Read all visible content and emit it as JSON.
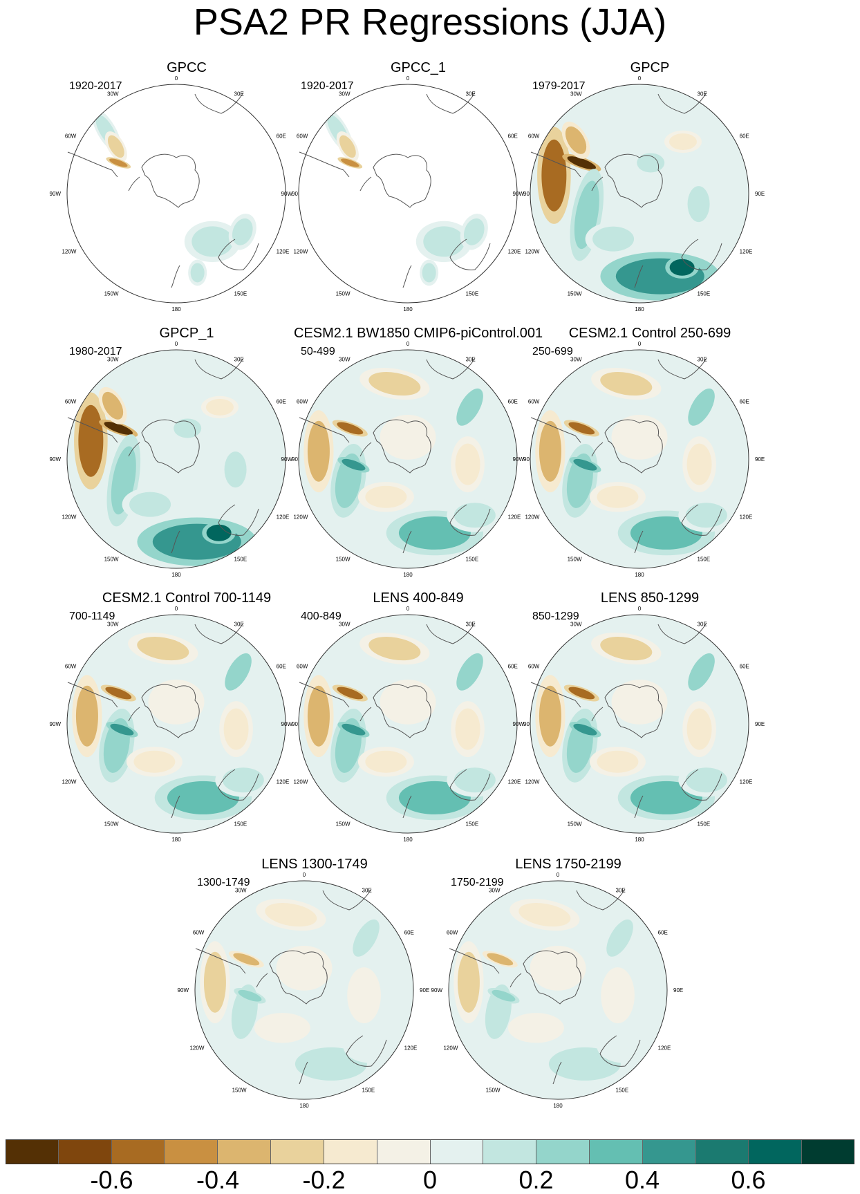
{
  "chart_data": {
    "type": "heatmap",
    "projection": "south-polar stereographic",
    "title": "PSA2 PR Regressions (JJA)",
    "longitude_labels": [
      "0",
      "30E",
      "60E",
      "90E",
      "120E",
      "150E",
      "180",
      "150W",
      "120W",
      "90W",
      "60W",
      "30W"
    ],
    "panels": [
      {
        "title": "GPCC",
        "range": "1920-2017",
        "coverage": "land"
      },
      {
        "title": "GPCC_1",
        "range": "1920-2017",
        "coverage": "land"
      },
      {
        "title": "GPCP",
        "range": "1979-2017",
        "coverage": "global"
      },
      {
        "title": "GPCP_1",
        "range": "1980-2017",
        "coverage": "global"
      },
      {
        "title": "CESM2.1 BW1850 CMIP6-piControl.001",
        "range": "50-499",
        "coverage": "global"
      },
      {
        "title": "CESM2.1 Control 250-699",
        "range": "250-699",
        "coverage": "global"
      },
      {
        "title": "CESM2.1 Control 700-1149",
        "range": "700-1149",
        "coverage": "global"
      },
      {
        "title": "LENS 400-849",
        "range": "400-849",
        "coverage": "global"
      },
      {
        "title": "LENS 850-1299",
        "range": "850-1299",
        "coverage": "global"
      },
      {
        "title": "LENS 1300-1749",
        "range": "1300-1749",
        "coverage": "global"
      },
      {
        "title": "LENS 1750-2199",
        "range": "1750-2199",
        "coverage": "global"
      }
    ],
    "colorbar": {
      "range": [
        -0.8,
        0.8
      ],
      "step": 0.1,
      "tick_labels": [
        "-0.6",
        "-0.4",
        "-0.2",
        "0",
        "0.2",
        "0.4",
        "0.6"
      ],
      "tick_values": [
        -0.6,
        -0.4,
        -0.2,
        0,
        0.2,
        0.4,
        0.6
      ],
      "colors": [
        "#543005",
        "#7f460d",
        "#a86b22",
        "#c99041",
        "#dcb56f",
        "#e9d29c",
        "#f6ead0",
        "#f4f1e6",
        "#e4f1ef",
        "#c2e6e0",
        "#94d5cb",
        "#64bfb2",
        "#35978f",
        "#1b7a70",
        "#01665e",
        "#003c30"
      ]
    }
  }
}
